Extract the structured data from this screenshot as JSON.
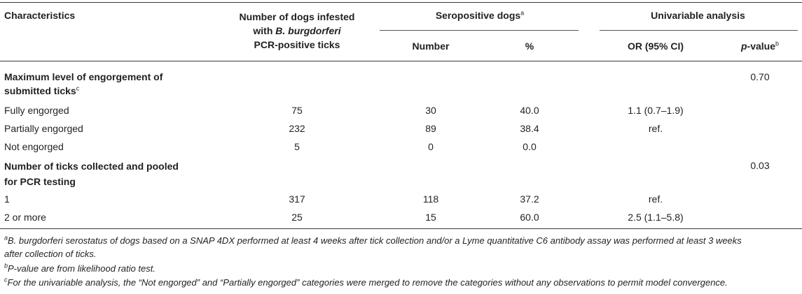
{
  "table": {
    "headers": {
      "characteristics": "Characteristics",
      "dogs_line1": "Number of dogs infested",
      "dogs_line2_pre": "with ",
      "dogs_line2_italic": "B. burgdorferi",
      "dogs_line3": "PCR-positive ticks",
      "seropositive": "Seropositive dogs",
      "seropositive_sup": "a",
      "univariable": "Univariable analysis",
      "number": "Number",
      "percent": "%",
      "or": "OR (95% CI)",
      "pvalue_italic": "p",
      "pvalue_rest": "-value",
      "pvalue_sup": "b"
    },
    "sections": [
      {
        "title_line1": "Maximum level of engorgement of",
        "title_line2": "submitted ticks",
        "title_sup": "c",
        "p_value": "0.70",
        "rows": [
          {
            "label": "Fully engorged",
            "dogs": "75",
            "number": "30",
            "percent": "40.0",
            "or": "1.1 (0.7–1.9)"
          },
          {
            "label": "Partially engorged",
            "dogs": "232",
            "number": "89",
            "percent": "38.4",
            "or": "ref."
          },
          {
            "label": "Not engorged",
            "dogs": "5",
            "number": "0",
            "percent": "0.0",
            "or": ""
          }
        ]
      },
      {
        "title_line1": "Number of ticks collected and pooled",
        "title_line2": "for PCR testing",
        "title_sup": "",
        "p_value": "0.03",
        "rows": [
          {
            "label": "1",
            "dogs": "317",
            "number": "118",
            "percent": "37.2",
            "or": "ref."
          },
          {
            "label": "2 or more",
            "dogs": "25",
            "number": "15",
            "percent": "60.0",
            "or": "2.5 (1.1–5.8)"
          }
        ]
      }
    ]
  },
  "footnotes": {
    "a_sup": "a",
    "a_line1": "B. burgdorferi serostatus of dogs based on a SNAP 4DX performed at least 4 weeks after tick collection and/or a Lyme quantitative C6 antibody assay was performed at least 3 weeks",
    "a_line2": "after collection of ticks.",
    "b_sup": "b",
    "b_text": "P-value are from likelihood ratio test.",
    "c_sup": "c",
    "c_text": "For the univariable analysis, the “Not engorged” and “Partially engorged” categories were merged to remove the categories without any observations to permit model convergence."
  }
}
